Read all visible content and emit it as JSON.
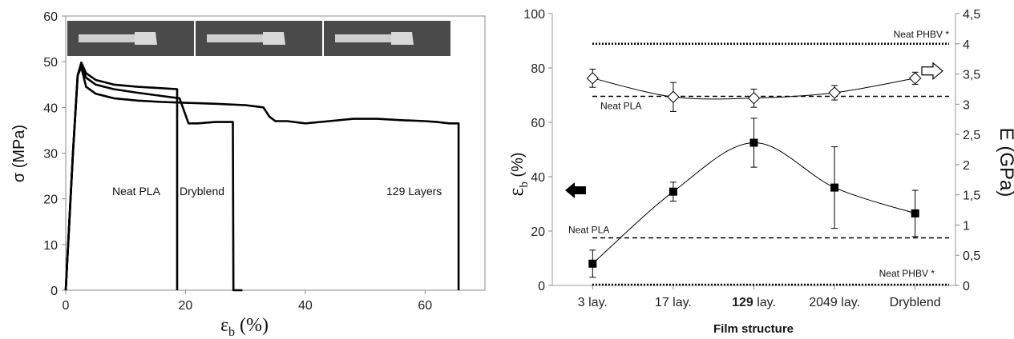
{
  "chart_data": [
    {
      "type": "line",
      "xlabel_symbol": "ε",
      "xlabel_sub": "b",
      "xlabel_unit": "(%)",
      "ylabel": "σ (MPa)",
      "xlim": [
        0,
        70
      ],
      "ylim": [
        0,
        60
      ],
      "xticks": [
        0,
        20,
        40,
        60
      ],
      "yticks": [
        0,
        10,
        20,
        30,
        40,
        50,
        60
      ],
      "grid": false,
      "inset_photos": 3,
      "annotations": [
        "Neat PLA",
        "Dryblend",
        "129 Layers"
      ],
      "series": [
        {
          "x": [
            0,
            1.2,
            2.0,
            2.6,
            3.4,
            5,
            8,
            12,
            16,
            18.6,
            18.6
          ],
          "y": [
            0,
            30,
            47,
            49.8,
            47.5,
            46,
            45,
            44.5,
            44.2,
            44,
            0
          ]
        },
        {
          "x": [
            0,
            1.2,
            2.0,
            2.6,
            3.4,
            5,
            8,
            12,
            16,
            19,
            20.5,
            22,
            25,
            27.9,
            28.0,
            29,
            29.5
          ],
          "y": [
            0,
            30,
            47,
            49.5,
            46.5,
            45,
            44,
            43.2,
            42.5,
            42,
            36.5,
            36.5,
            36.8,
            36.8,
            0,
            0,
            0
          ]
        },
        {
          "x": [
            0,
            1.2,
            2.0,
            2.6,
            3.4,
            5,
            8,
            12,
            16,
            20,
            25,
            30,
            33,
            34,
            35,
            37,
            40,
            44,
            48,
            52,
            56,
            60,
            62,
            64,
            65.6,
            65.6
          ],
          "y": [
            0,
            30,
            47,
            48.8,
            44.5,
            43,
            42,
            41.5,
            41.2,
            41,
            40.8,
            40.5,
            40,
            38,
            37,
            37,
            36.5,
            37,
            37.5,
            37.5,
            37.2,
            37,
            36.8,
            36.5,
            36.5,
            0
          ]
        }
      ]
    },
    {
      "type": "line",
      "title": "",
      "xlabel": "Film structure",
      "ylabel_left_symbol": "ε",
      "ylabel_left_sub": "b",
      "ylabel_left_unit": " (%)",
      "ylabel_right": "E (GPa)",
      "categories": [
        "3 lay.",
        "17 lay.",
        "129 lay.",
        "2049 lay.",
        "Dryblend"
      ],
      "category_bold_prefix": {
        "2": "129"
      },
      "ylim_left": [
        0,
        100
      ],
      "yticks_left": [
        0,
        20,
        40,
        60,
        80,
        100
      ],
      "ylim_right": [
        0,
        4.5
      ],
      "yticks_right": [
        "0",
        "0,5",
        "1",
        "1,5",
        "2",
        "2,5",
        "3",
        "3,5",
        "4",
        "4,5"
      ],
      "series": [
        {
          "axis": "left",
          "marker": "square",
          "values": [
            8,
            34.5,
            52.5,
            36,
            26.5
          ],
          "errors": [
            5,
            3.5,
            9,
            15,
            8.5
          ]
        },
        {
          "axis": "right",
          "marker": "diamond-open",
          "values": [
            3.43,
            3.12,
            3.1,
            3.19,
            3.43
          ],
          "errors": [
            0.15,
            0.24,
            0.15,
            0.12,
            0.1
          ]
        }
      ],
      "reference_lines": [
        {
          "label": "Neat PHBV *",
          "axis": "right",
          "value": 4.0,
          "style": "dotted"
        },
        {
          "label": "Neat PLA",
          "axis": "right",
          "value": 3.13,
          "style": "dashed"
        },
        {
          "label": "Neat PLA",
          "axis": "left",
          "value": 17.5,
          "style": "dashed"
        },
        {
          "label": "Neat PHBV *",
          "axis": "left",
          "value": 0.3,
          "style": "dotted"
        }
      ],
      "arrows": [
        "left-filled",
        "right-open"
      ]
    }
  ]
}
